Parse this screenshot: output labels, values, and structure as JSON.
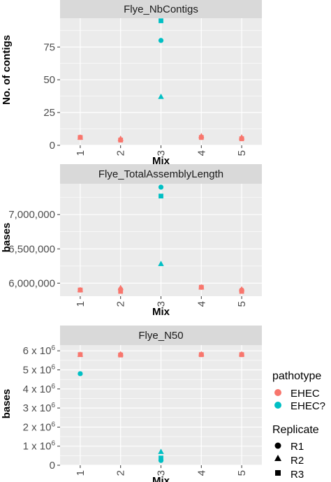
{
  "colors": {
    "EHEC": "#F8766D",
    "EHEC?": "#00BFC4",
    "panel_bg": "#EBEBEB",
    "strip_bg": "#D9D9D9",
    "grid": "#FFFFFF"
  },
  "legend": {
    "pathotype_title": "pathotype",
    "pathotype_items": [
      {
        "label": "EHEC",
        "color": "#F8766D"
      },
      {
        "label": "EHEC?",
        "color": "#00BFC4"
      }
    ],
    "replicate_title": "Replicate",
    "replicate_items": [
      {
        "label": "R1",
        "shape": "circle"
      },
      {
        "label": "R2",
        "shape": "triangle"
      },
      {
        "label": "R3",
        "shape": "square"
      }
    ]
  },
  "chart_data": [
    {
      "type": "scatter",
      "title": "Flye_NbContigs",
      "xlabel": "Mix",
      "ylabel": "No. of contigs",
      "categories": [
        "1",
        "2",
        "3",
        "4",
        "5"
      ],
      "ylim": [
        0,
        97
      ],
      "y_ticks": [
        0,
        25,
        50,
        75
      ],
      "y_tick_labels": [
        "0",
        "25",
        "50",
        "75"
      ],
      "grid": true,
      "points": [
        {
          "x": "1",
          "y": 6,
          "pathotype": "EHEC",
          "replicate": "R1"
        },
        {
          "x": "1",
          "y": 6,
          "pathotype": "EHEC",
          "replicate": "R2"
        },
        {
          "x": "1",
          "y": 6,
          "pathotype": "EHEC",
          "replicate": "R3"
        },
        {
          "x": "2",
          "y": 4,
          "pathotype": "EHEC",
          "replicate": "R1"
        },
        {
          "x": "2",
          "y": 5,
          "pathotype": "EHEC",
          "replicate": "R2"
        },
        {
          "x": "2",
          "y": 4,
          "pathotype": "EHEC",
          "replicate": "R3"
        },
        {
          "x": "3",
          "y": 80,
          "pathotype": "EHEC?",
          "replicate": "R1"
        },
        {
          "x": "3",
          "y": 37,
          "pathotype": "EHEC?",
          "replicate": "R2"
        },
        {
          "x": "3",
          "y": 95,
          "pathotype": "EHEC?",
          "replicate": "R3"
        },
        {
          "x": "4",
          "y": 6,
          "pathotype": "EHEC",
          "replicate": "R1"
        },
        {
          "x": "4",
          "y": 7,
          "pathotype": "EHEC",
          "replicate": "R2"
        },
        {
          "x": "4",
          "y": 6,
          "pathotype": "EHEC",
          "replicate": "R3"
        },
        {
          "x": "5",
          "y": 5,
          "pathotype": "EHEC",
          "replicate": "R1"
        },
        {
          "x": "5",
          "y": 6,
          "pathotype": "EHEC",
          "replicate": "R2"
        },
        {
          "x": "5",
          "y": 5,
          "pathotype": "EHEC",
          "replicate": "R3"
        }
      ]
    },
    {
      "type": "scatter",
      "title": "Flye_TotalAssemblyLength",
      "xlabel": "Mix",
      "ylabel": "bases",
      "categories": [
        "1",
        "2",
        "3",
        "4",
        "5"
      ],
      "ylim": [
        5810000,
        7450000
      ],
      "y_ticks": [
        6000000,
        6500000,
        7000000
      ],
      "y_tick_labels": [
        "6,000,000",
        "6,500,000",
        "7,000,000"
      ],
      "grid": true,
      "points": [
        {
          "x": "1",
          "y": 5900000,
          "pathotype": "EHEC",
          "replicate": "R1"
        },
        {
          "x": "1",
          "y": 5900000,
          "pathotype": "EHEC",
          "replicate": "R2"
        },
        {
          "x": "1",
          "y": 5900000,
          "pathotype": "EHEC",
          "replicate": "R3"
        },
        {
          "x": "2",
          "y": 5910000,
          "pathotype": "EHEC",
          "replicate": "R1"
        },
        {
          "x": "2",
          "y": 5930000,
          "pathotype": "EHEC",
          "replicate": "R2"
        },
        {
          "x": "2",
          "y": 5880000,
          "pathotype": "EHEC",
          "replicate": "R3"
        },
        {
          "x": "3",
          "y": 7400000,
          "pathotype": "EHEC?",
          "replicate": "R1"
        },
        {
          "x": "3",
          "y": 6280000,
          "pathotype": "EHEC?",
          "replicate": "R2"
        },
        {
          "x": "3",
          "y": 7270000,
          "pathotype": "EHEC?",
          "replicate": "R3"
        },
        {
          "x": "4",
          "y": 5940000,
          "pathotype": "EHEC",
          "replicate": "R1"
        },
        {
          "x": "4",
          "y": 5940000,
          "pathotype": "EHEC",
          "replicate": "R2"
        },
        {
          "x": "4",
          "y": 5940000,
          "pathotype": "EHEC",
          "replicate": "R3"
        },
        {
          "x": "5",
          "y": 5900000,
          "pathotype": "EHEC",
          "replicate": "R1"
        },
        {
          "x": "5",
          "y": 5910000,
          "pathotype": "EHEC",
          "replicate": "R2"
        },
        {
          "x": "5",
          "y": 5880000,
          "pathotype": "EHEC",
          "replicate": "R3"
        }
      ]
    },
    {
      "type": "scatter",
      "title": "Flye_N50",
      "xlabel": "Mix",
      "ylabel": "bases",
      "categories": [
        "1",
        "2",
        "3",
        "4",
        "5"
      ],
      "ylim": [
        0,
        6300000
      ],
      "y_ticks": [
        0,
        1000000,
        2000000,
        3000000,
        4000000,
        5000000,
        6000000
      ],
      "y_tick_labels": [
        "0",
        "1 x 10^6",
        "2 x 10^6",
        "3 x 10^6",
        "4 x 10^6",
        "5 x 10^6",
        "6 x 10^6"
      ],
      "grid": true,
      "points": [
        {
          "x": "1",
          "y": 4800000,
          "pathotype": "EHEC?",
          "replicate": "R1"
        },
        {
          "x": "1",
          "y": 5800000,
          "pathotype": "EHEC",
          "replicate": "R2"
        },
        {
          "x": "1",
          "y": 5800000,
          "pathotype": "EHEC",
          "replicate": "R3"
        },
        {
          "x": "2",
          "y": 5800000,
          "pathotype": "EHEC",
          "replicate": "R1"
        },
        {
          "x": "2",
          "y": 5820000,
          "pathotype": "EHEC",
          "replicate": "R2"
        },
        {
          "x": "2",
          "y": 5780000,
          "pathotype": "EHEC",
          "replicate": "R3"
        },
        {
          "x": "3",
          "y": 250000,
          "pathotype": "EHEC?",
          "replicate": "R1"
        },
        {
          "x": "3",
          "y": 700000,
          "pathotype": "EHEC?",
          "replicate": "R2"
        },
        {
          "x": "3",
          "y": 380000,
          "pathotype": "EHEC?",
          "replicate": "R3"
        },
        {
          "x": "4",
          "y": 5800000,
          "pathotype": "EHEC",
          "replicate": "R1"
        },
        {
          "x": "4",
          "y": 5820000,
          "pathotype": "EHEC",
          "replicate": "R2"
        },
        {
          "x": "4",
          "y": 5800000,
          "pathotype": "EHEC",
          "replicate": "R3"
        },
        {
          "x": "5",
          "y": 5800000,
          "pathotype": "EHEC",
          "replicate": "R1"
        },
        {
          "x": "5",
          "y": 5820000,
          "pathotype": "EHEC",
          "replicate": "R2"
        },
        {
          "x": "5",
          "y": 5800000,
          "pathotype": "EHEC",
          "replicate": "R3"
        }
      ]
    }
  ]
}
